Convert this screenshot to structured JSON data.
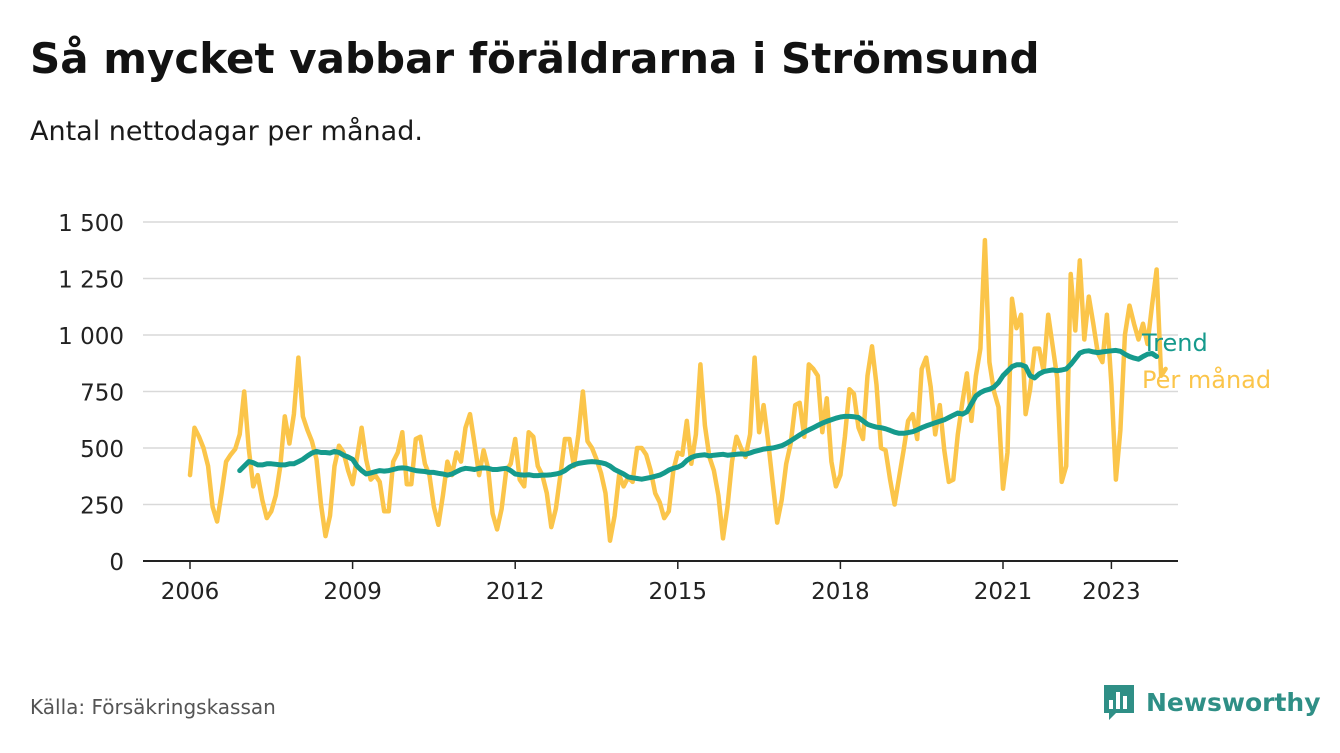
{
  "header": {
    "title": "Så mycket vabbar föräldrarna i Strömsund",
    "subtitle": "Antal nettodagar per månad."
  },
  "footer": {
    "source": "Källa: Försäkringskassan",
    "brand": "Newsworthy",
    "brand_icon": "bar-chart-speech-bubble-icon"
  },
  "colors": {
    "monthly": "#fbc54a",
    "trend": "#159a8c",
    "grid": "#d9d9d9",
    "axis": "#222222",
    "brand": "#2f8f86"
  },
  "chart_data": {
    "type": "line",
    "title": "Så mycket vabbar föräldrarna i Strömsund",
    "subtitle": "Antal nettodagar per månad.",
    "xlabel": "",
    "ylabel": "",
    "x_range": [
      2006.0,
      2023.417
    ],
    "ylim": [
      0,
      1500
    ],
    "y_ticks": [
      0,
      250,
      500,
      750,
      1000,
      1250,
      1500
    ],
    "y_tick_labels": [
      "0",
      "250",
      "500",
      "750",
      "1 000",
      "1 250",
      "1 500"
    ],
    "x_ticks": [
      2006,
      2009,
      2012,
      2015,
      2018,
      2021,
      2023
    ],
    "x_tick_labels": [
      "2006",
      "2009",
      "2012",
      "2015",
      "2018",
      "2021",
      "2023"
    ],
    "grid": true,
    "legend": "inline labels at right end of series",
    "series": [
      {
        "name": "Per månad",
        "start": 2006.0,
        "step_months": 1,
        "values": [
          380,
          590,
          550,
          500,
          420,
          240,
          175,
          300,
          440,
          470,
          495,
          560,
          750,
          500,
          330,
          380,
          270,
          190,
          220,
          290,
          420,
          640,
          520,
          650,
          900,
          640,
          580,
          530,
          450,
          250,
          110,
          200,
          420,
          510,
          480,
          400,
          340,
          460,
          590,
          450,
          360,
          380,
          350,
          220,
          220,
          440,
          480,
          570,
          340,
          340,
          540,
          550,
          430,
          380,
          240,
          160,
          290,
          440,
          380,
          480,
          440,
          590,
          650,
          520,
          380,
          490,
          410,
          210,
          140,
          230,
          400,
          430,
          540,
          360,
          330,
          570,
          550,
          420,
          380,
          300,
          150,
          230,
          380,
          540,
          540,
          420,
          560,
          750,
          530,
          500,
          450,
          390,
          300,
          90,
          200,
          380,
          330,
          370,
          350,
          500,
          500,
          470,
          400,
          300,
          260,
          190,
          220,
          400,
          480,
          470,
          620,
          430,
          560,
          870,
          600,
          460,
          400,
          290,
          100,
          240,
          440,
          550,
          500,
          460,
          560,
          900,
          570,
          690,
          530,
          350,
          170,
          270,
          430,
          520,
          690,
          700,
          550,
          870,
          850,
          820,
          570,
          720,
          440,
          330,
          380,
          550,
          760,
          740,
          590,
          540,
          820,
          950,
          780,
          500,
          490,
          360,
          250,
          370,
          490,
          620,
          650,
          540,
          850,
          900,
          770,
          560,
          690,
          490,
          350,
          360,
          560,
          700,
          830,
          620,
          820,
          940,
          1420,
          880,
          750,
          680,
          320,
          480,
          1160,
          1030,
          1090,
          650,
          760,
          940,
          940,
          840,
          1090,
          950,
          810,
          350,
          420,
          1270,
          1020,
          1330,
          980,
          1170,
          1050,
          920,
          880,
          1090,
          780,
          360,
          580,
          1000,
          1130,
          1050,
          980,
          1050,
          960,
          1130,
          1290,
          820,
          850
        ]
      },
      {
        "name": "Trend",
        "start": 2006.917,
        "step_months": 1,
        "values": [
          400,
          420,
          440,
          435,
          425,
          425,
          430,
          430,
          428,
          425,
          425,
          430,
          430,
          440,
          450,
          465,
          478,
          485,
          480,
          480,
          478,
          485,
          480,
          468,
          460,
          450,
          420,
          400,
          385,
          390,
          395,
          400,
          398,
          400,
          405,
          410,
          412,
          410,
          405,
          400,
          398,
          396,
          392,
          392,
          388,
          385,
          380,
          385,
          395,
          405,
          410,
          408,
          405,
          410,
          412,
          410,
          405,
          405,
          408,
          410,
          400,
          385,
          382,
          380,
          382,
          378,
          378,
          380,
          380,
          382,
          385,
          390,
          400,
          415,
          425,
          432,
          435,
          438,
          440,
          438,
          435,
          430,
          420,
          405,
          395,
          385,
          372,
          368,
          365,
          362,
          366,
          370,
          375,
          380,
          390,
          402,
          410,
          415,
          425,
          445,
          458,
          465,
          468,
          470,
          465,
          468,
          470,
          472,
          468,
          470,
          472,
          474,
          472,
          478,
          485,
          490,
          495,
          498,
          500,
          505,
          510,
          520,
          532,
          545,
          558,
          570,
          580,
          590,
          600,
          610,
          618,
          625,
          632,
          637,
          640,
          640,
          638,
          635,
          620,
          605,
          598,
          592,
          590,
          585,
          578,
          570,
          565,
          565,
          568,
          572,
          580,
          590,
          598,
          605,
          612,
          618,
          625,
          635,
          645,
          655,
          650,
          660,
          695,
          730,
          745,
          755,
          760,
          770,
          790,
          820,
          840,
          860,
          868,
          868,
          860,
          820,
          810,
          828,
          838,
          842,
          845,
          842,
          845,
          850,
          870,
          895,
          920,
          928,
          930,
          925,
          922,
          925,
          928,
          930,
          932,
          928,
          915,
          905,
          898,
          893,
          905,
          915,
          918,
          905
        ]
      }
    ]
  }
}
